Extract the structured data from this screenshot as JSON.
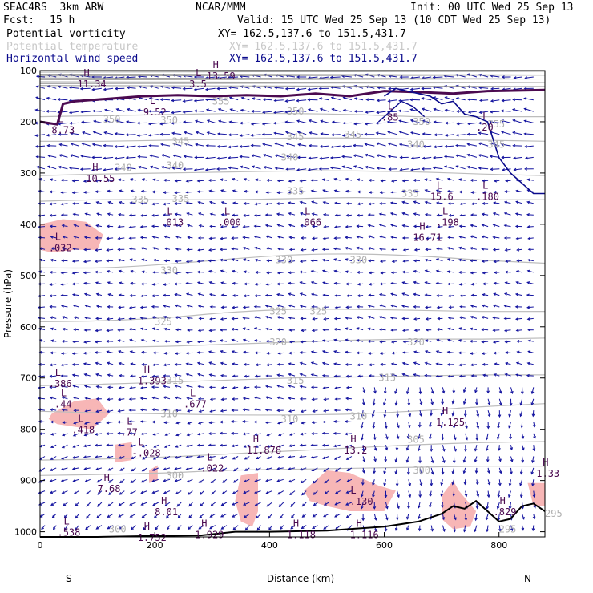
{
  "header": {
    "model": "SEAC4RS  3km ARW",
    "org": "NCAR/MMM",
    "init": "Init: 00 UTC Wed 25 Sep 13",
    "fcst_label": "Fcst:",
    "fcst_value": "15 h",
    "valid": "Valid: 15 UTC Wed 25 Sep 13 (10 CDT Wed 25 Sep 13)"
  },
  "fields": [
    {
      "name": "Potential vorticity",
      "xy": "XY= 162.5,137.6 to 151.5,431.7",
      "color": "#4b0082"
    },
    {
      "name": "Potential temperature",
      "xy": "XY= 162.5,137.6 to 151.5,431.7",
      "color": "#c8c8c8"
    },
    {
      "name": "Horizontal wind speed",
      "xy": "XY= 162.5,137.6 to 151.5,431.7",
      "color": "#0a0a8c"
    }
  ],
  "chart_data": {
    "type": "cross-section",
    "xlabel": "Distance (km)",
    "ylabel": "Pressure (hPa)",
    "xlim": [
      0,
      880
    ],
    "ylim": [
      1010,
      100
    ],
    "x_ticks": [
      0,
      200,
      400,
      600,
      800
    ],
    "y_ticks": [
      100,
      200,
      300,
      400,
      500,
      600,
      700,
      800,
      900,
      1000
    ],
    "x_end_labels": {
      "left": "S",
      "right": "N"
    },
    "theta_contours": [
      {
        "label": "300",
        "p": [
          890,
          888,
          885,
          880,
          878,
          876,
          874,
          872,
          872
        ]
      },
      {
        "label": "305",
        "p": [
          860,
          858,
          854,
          848,
          842,
          836,
          830,
          826,
          824
        ]
      },
      {
        "label": "310",
        "p": [
          765,
          768,
          770,
          772,
          772,
          770,
          764,
          756,
          750
        ]
      },
      {
        "label": "315",
        "p": [
          715,
          712,
          708,
          704,
          700,
          698,
          696,
          694,
          694
        ]
      },
      {
        "label": "320",
        "p": [
          640,
          640,
          638,
          634,
          630,
          626,
          624,
          624,
          622
        ]
      },
      {
        "label": "325",
        "p": [
          590,
          588,
          582,
          572,
          566,
          566,
          568,
          570,
          570
        ]
      },
      {
        "label": "330",
        "p": [
          485,
          485,
          478,
          468,
          460,
          458,
          462,
          470,
          476
        ]
      },
      {
        "label": "335",
        "p": [
          355,
          352,
          352,
          352,
          350,
          348,
          350,
          352,
          352
        ]
      },
      {
        "label": "340",
        "p": [
          305,
          302,
          300,
          298,
          296,
          296,
          298,
          302,
          305
        ]
      },
      {
        "label": "345",
        "p": [
          238,
          238,
          236,
          234,
          232,
          232,
          234,
          236,
          238
        ]
      },
      {
        "label": "350",
        "p": [
          190,
          188,
          186,
          184,
          184,
          186,
          190,
          190,
          190
        ]
      }
    ],
    "theta_x": [
      0,
      110,
      220,
      330,
      440,
      550,
      660,
      770,
      880
    ],
    "theta_labels": [
      {
        "text": "300",
        "x": 120,
        "p": 995
      },
      {
        "text": "300",
        "x": 220,
        "p": 890
      },
      {
        "text": "300",
        "x": 650,
        "p": 880
      },
      {
        "text": "295",
        "x": 800,
        "p": 995
      },
      {
        "text": "295",
        "x": 880,
        "p": 965
      },
      {
        "text": "305",
        "x": 640,
        "p": 820
      },
      {
        "text": "310",
        "x": 210,
        "p": 770
      },
      {
        "text": "310",
        "x": 420,
        "p": 780
      },
      {
        "text": "310",
        "x": 540,
        "p": 775
      },
      {
        "text": "315",
        "x": 220,
        "p": 705
      },
      {
        "text": "315",
        "x": 430,
        "p": 705
      },
      {
        "text": "315",
        "x": 590,
        "p": 700
      },
      {
        "text": "320",
        "x": 400,
        "p": 630
      },
      {
        "text": "320",
        "x": 640,
        "p": 630
      },
      {
        "text": "325",
        "x": 200,
        "p": 590
      },
      {
        "text": "325",
        "x": 400,
        "p": 570
      },
      {
        "text": "325",
        "x": 470,
        "p": 570
      },
      {
        "text": "330",
        "x": 210,
        "p": 490
      },
      {
        "text": "330",
        "x": 410,
        "p": 470
      },
      {
        "text": "330",
        "x": 540,
        "p": 470
      },
      {
        "text": "335",
        "x": 160,
        "p": 352
      },
      {
        "text": "335",
        "x": 230,
        "p": 350
      },
      {
        "text": "335",
        "x": 430,
        "p": 335
      },
      {
        "text": "335",
        "x": 630,
        "p": 340
      },
      {
        "text": "340",
        "x": 130,
        "p": 290
      },
      {
        "text": "340",
        "x": 220,
        "p": 285
      },
      {
        "text": "340",
        "x": 420,
        "p": 270
      },
      {
        "text": "340",
        "x": 640,
        "p": 245
      },
      {
        "text": "345",
        "x": 230,
        "p": 238
      },
      {
        "text": "345",
        "x": 430,
        "p": 230
      },
      {
        "text": "345",
        "x": 530,
        "p": 225
      },
      {
        "text": "345",
        "x": 780,
        "p": 245
      },
      {
        "text": "350",
        "x": 110,
        "p": 195
      },
      {
        "text": "350",
        "x": 210,
        "p": 197
      },
      {
        "text": "350",
        "x": 430,
        "p": 180
      },
      {
        "text": "350",
        "x": 650,
        "p": 200
      },
      {
        "text": "355",
        "x": 300,
        "p": 160
      },
      {
        "text": "355",
        "x": 780,
        "p": 205
      }
    ],
    "pv_line": {
      "x": [
        0,
        30,
        40,
        60,
        120,
        180,
        240,
        300,
        360,
        420,
        480,
        540,
        600,
        660,
        720,
        780,
        880
      ],
      "p": [
        200,
        205,
        165,
        160,
        155,
        150,
        148,
        150,
        148,
        150,
        145,
        150,
        140,
        142,
        145,
        140,
        138
      ]
    },
    "wind_contour_20": {
      "x": [
        600,
        620,
        640,
        660,
        680,
        700,
        720,
        740,
        760,
        780,
        800,
        820,
        840,
        860,
        880
      ],
      "p": [
        150,
        135,
        140,
        145,
        150,
        165,
        160,
        185,
        190,
        200,
        270,
        300,
        320,
        340,
        340
      ]
    },
    "wind_contour_small": {
      "x": [
        590,
        610,
        630,
        650,
        670
      ],
      "p": [
        200,
        180,
        160,
        170,
        190
      ]
    },
    "pv_shading_regions": [
      {
        "x": [
          0,
          40,
          80,
          110,
          100,
          60,
          20,
          0
        ],
        "p": [
          400,
          390,
          395,
          420,
          450,
          450,
          455,
          450
        ]
      },
      {
        "x": [
          20,
          60,
          100,
          120,
          90,
          60,
          30,
          15
        ],
        "p": [
          770,
          745,
          740,
          770,
          800,
          795,
          790,
          780
        ]
      },
      {
        "x": [
          460,
          500,
          540,
          590,
          620,
          600,
          540,
          500,
          470
        ],
        "p": [
          920,
          880,
          885,
          910,
          920,
          960,
          960,
          950,
          940
        ]
      },
      {
        "x": [
          350,
          380,
          380,
          370,
          350,
          340
        ],
        "p": [
          890,
          885,
          960,
          990,
          980,
          940
        ]
      },
      {
        "x": [
          700,
          720,
          730,
          760,
          750,
          720,
          700
        ],
        "p": [
          930,
          900,
          920,
          960,
          990,
          995,
          975
        ]
      },
      {
        "x": [
          850,
          880,
          880,
          860
        ],
        "p": [
          905,
          905,
          950,
          950
        ]
      },
      {
        "x": [
          190,
          205,
          205,
          190
        ],
        "p": [
          880,
          870,
          900,
          905
        ]
      },
      {
        "x": [
          130,
          160,
          160,
          130
        ],
        "p": [
          830,
          825,
          860,
          865
        ]
      }
    ],
    "terrain": {
      "x": [
        0,
        100,
        200,
        280,
        340,
        400,
        500,
        600,
        660,
        700,
        720,
        740,
        760,
        780,
        800,
        820,
        840,
        860,
        880
      ],
      "p": [
        1010,
        1010,
        1008,
        1007,
        1000,
        1000,
        998,
        990,
        980,
        965,
        950,
        955,
        940,
        960,
        980,
        975,
        950,
        945,
        960
      ]
    },
    "annotations": [
      {
        "type": "H",
        "value": "11.34",
        "x": 65,
        "p": 120
      },
      {
        "type": "L",
        "value": "9.52",
        "x": 180,
        "p": 175
      },
      {
        "type": "L",
        "value": "8.73",
        "x": 20,
        "p": 210
      },
      {
        "type": "L",
        "value": "3.5",
        "x": 260,
        "p": 120
      },
      {
        "type": "H",
        "value": "13.59",
        "x": 290,
        "p": 105
      },
      {
        "type": "H",
        "value": "10.55",
        "x": 80,
        "p": 305
      },
      {
        "type": "L",
        "value": ".013",
        "x": 210,
        "p": 390
      },
      {
        "type": "L",
        "value": ".000",
        "x": 310,
        "p": 390
      },
      {
        "type": "L",
        "value": ".066",
        "x": 450,
        "p": 390
      },
      {
        "type": "L",
        "value": "15.6",
        "x": 680,
        "p": 340
      },
      {
        "type": "L",
        "value": ".180",
        "x": 760,
        "p": 340
      },
      {
        "type": "L",
        "value": ".198",
        "x": 690,
        "p": 390
      },
      {
        "type": "H",
        "value": "16.71",
        "x": 650,
        "p": 420
      },
      {
        "type": "L",
        "value": ".85",
        "x": 595,
        "p": 185
      },
      {
        "type": "L",
        "value": ".20",
        "x": 760,
        "p": 205
      },
      {
        "type": "L",
        "value": ".032",
        "x": 15,
        "p": 440
      },
      {
        "type": "H",
        "value": "1.393",
        "x": 170,
        "p": 700
      },
      {
        "type": "L",
        "value": ".677",
        "x": 250,
        "p": 745
      },
      {
        "type": "L",
        "value": ".386",
        "x": 15,
        "p": 705
      },
      {
        "type": "L",
        "value": ".44",
        "x": 25,
        "p": 745
      },
      {
        "type": "L",
        "value": ".418",
        "x": 55,
        "p": 795
      },
      {
        "type": "L",
        "value": ".77",
        "x": 140,
        "p": 800
      },
      {
        "type": "L",
        "value": "-.028",
        "x": 160,
        "p": 840
      },
      {
        "type": "H",
        "value": "11.878",
        "x": 360,
        "p": 835
      },
      {
        "type": "L",
        "value": ".022",
        "x": 280,
        "p": 870
      },
      {
        "type": "H",
        "value": "13.2",
        "x": 530,
        "p": 835
      },
      {
        "type": "H",
        "value": "1.125",
        "x": 690,
        "p": 780
      },
      {
        "type": "H",
        "value": "7.68",
        "x": 100,
        "p": 910
      },
      {
        "type": "H",
        "value": "8.01",
        "x": 200,
        "p": 955
      },
      {
        "type": "L",
        "value": "-.130",
        "x": 530,
        "p": 935
      },
      {
        "type": "H",
        "value": ".829",
        "x": 790,
        "p": 955
      },
      {
        "type": "H",
        "value": "1.33",
        "x": 865,
        "p": 880
      },
      {
        "type": "L",
        "value": ".538",
        "x": 30,
        "p": 995
      },
      {
        "type": "H",
        "value": "1.752",
        "x": 170,
        "p": 1005
      },
      {
        "type": "H",
        "value": "1.929",
        "x": 270,
        "p": 1000
      },
      {
        "type": "H",
        "value": "1.118",
        "x": 430,
        "p": 1000
      },
      {
        "type": "H",
        "value": "1.116",
        "x": 540,
        "p": 1000
      }
    ]
  }
}
